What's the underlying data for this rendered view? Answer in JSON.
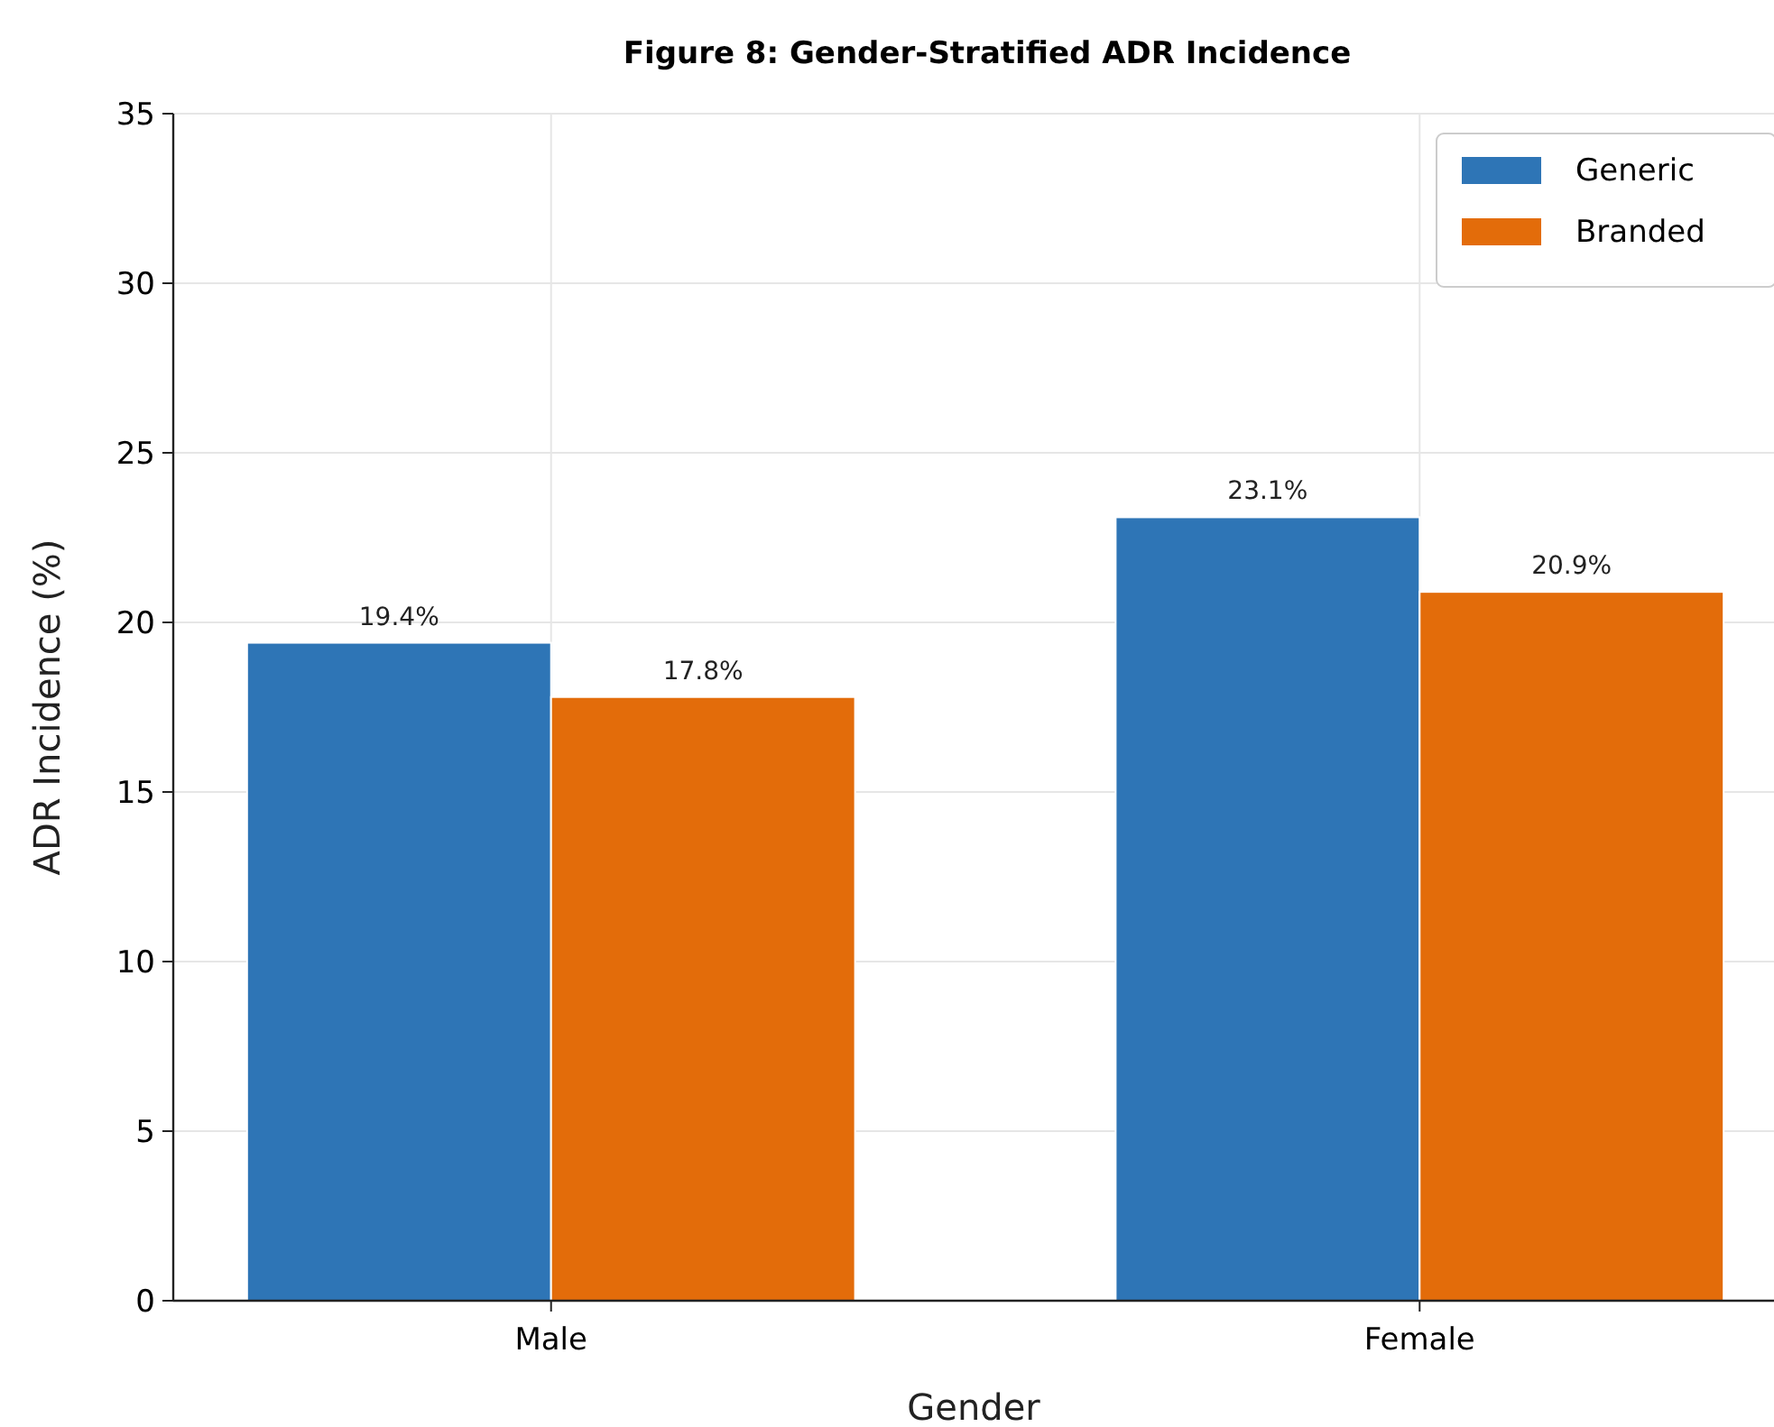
{
  "chart_data": {
    "type": "bar",
    "title": "Figure 8: Gender-Stratified ADR Incidence",
    "xlabel": "Gender",
    "ylabel": "ADR Incidence (%)",
    "categories": [
      "Male",
      "Female"
    ],
    "series": [
      {
        "name": "Generic",
        "color": "#2e75b6",
        "values": [
          19.4,
          23.1
        ],
        "value_labels": [
          "19.4%",
          "23.1%"
        ]
      },
      {
        "name": "Branded",
        "color": "#e36c0a",
        "values": [
          17.8,
          20.9
        ],
        "value_labels": [
          "17.8%",
          "20.9%"
        ]
      }
    ],
    "ylim": [
      0,
      35
    ],
    "yticks": [
      0,
      5,
      10,
      15,
      20,
      25,
      30,
      35
    ],
    "grid": true,
    "legend": "top right"
  }
}
